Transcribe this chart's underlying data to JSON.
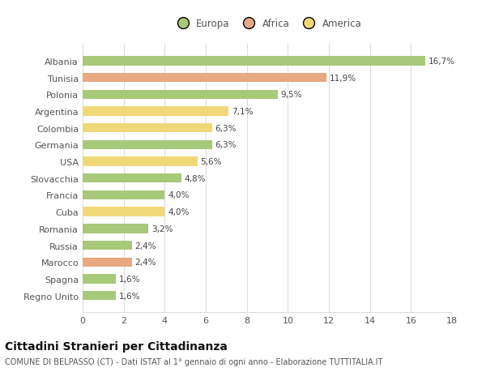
{
  "categories": [
    "Albania",
    "Tunisia",
    "Polonia",
    "Argentina",
    "Colombia",
    "Germania",
    "USA",
    "Slovacchia",
    "Francia",
    "Cuba",
    "Romania",
    "Russia",
    "Marocco",
    "Spagna",
    "Regno Unito"
  ],
  "values": [
    16.7,
    11.9,
    9.5,
    7.1,
    6.3,
    6.3,
    5.6,
    4.8,
    4.0,
    4.0,
    3.2,
    2.4,
    2.4,
    1.6,
    1.6
  ],
  "continents": [
    "Europa",
    "Africa",
    "Europa",
    "America",
    "America",
    "Europa",
    "America",
    "Europa",
    "Europa",
    "America",
    "Europa",
    "Europa",
    "Africa",
    "Europa",
    "Europa"
  ],
  "labels": [
    "16,7%",
    "11,9%",
    "9,5%",
    "7,1%",
    "6,3%",
    "6,3%",
    "5,6%",
    "4,8%",
    "4,0%",
    "4,0%",
    "3,2%",
    "2,4%",
    "2,4%",
    "1,6%",
    "1,6%"
  ],
  "colors": {
    "Europa": "#a8c87a",
    "Africa": "#e8a882",
    "America": "#f0d878"
  },
  "legend": [
    "Europa",
    "Africa",
    "America"
  ],
  "legend_colors": [
    "#a8c87a",
    "#e8a882",
    "#f0d878"
  ],
  "title": "Cittadini Stranieri per Cittadinanza",
  "subtitle": "COMUNE DI BELPASSO (CT) - Dati ISTAT al 1° gennaio di ogni anno - Elaborazione TUTTITALIA.IT",
  "xlim": [
    0,
    18
  ],
  "xticks": [
    0,
    2,
    4,
    6,
    8,
    10,
    12,
    14,
    16,
    18
  ],
  "background_color": "#ffffff",
  "grid_color": "#dddddd",
  "bar_height": 0.55,
  "label_fontsize": 7.5,
  "title_fontsize": 10,
  "subtitle_fontsize": 7,
  "tick_fontsize": 8,
  "legend_fontsize": 8.5
}
